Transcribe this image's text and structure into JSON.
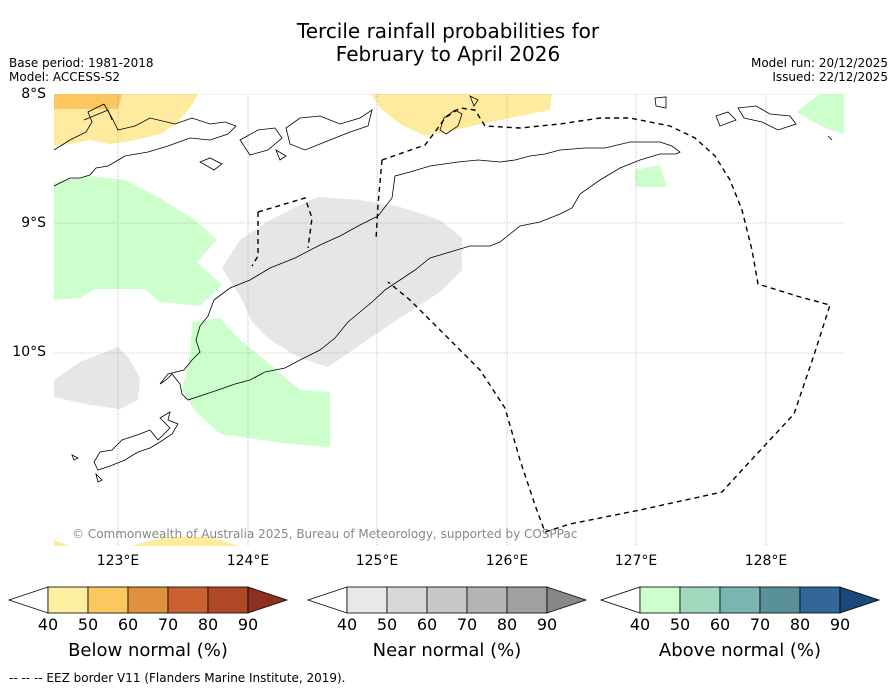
{
  "title_line1": "Tercile rainfall probabilities for",
  "title_line2": "February to April 2026",
  "meta_left": [
    "Base period: 1981-2018",
    "Model: ACCESS-S2"
  ],
  "meta_right": [
    "Model run: 20/12/2025",
    "Issued: 22/12/2025"
  ],
  "lat_labels": [
    "8°S",
    "9°S",
    "10°S"
  ],
  "lon_labels": [
    "123°E",
    "124°E",
    "125°E",
    "126°E",
    "127°E",
    "128°E"
  ],
  "copyright": "© Commonwealth of Australia 2025, Bureau of Meteorology, supported by COSPPac",
  "footer": "-- -- -- EEZ border V11 (Flanders Marine Institute, 2019).",
  "colorbars": [
    {
      "title": "Below normal (%)",
      "ticks": [
        "40",
        "50",
        "60",
        "70",
        "80",
        "90"
      ],
      "colors": [
        "#fff0a0",
        "#fdc75f",
        "#e0903e",
        "#cc6030",
        "#b04828",
        "#8c3020"
      ]
    },
    {
      "title": "Near normal (%)",
      "ticks": [
        "40",
        "50",
        "60",
        "70",
        "80",
        "90"
      ],
      "colors": [
        "#e8e8e8",
        "#d8d8d8",
        "#c8c8c8",
        "#b4b4b4",
        "#a0a0a0",
        "#888888"
      ]
    },
    {
      "title": "Above normal (%)",
      "ticks": [
        "40",
        "50",
        "60",
        "70",
        "80",
        "90"
      ],
      "colors": [
        "#ccffcc",
        "#a0d8be",
        "#7ab5b0",
        "#5a9098",
        "#336699",
        "#1a4a7a"
      ]
    }
  ],
  "colors": {
    "below": "#ffeb9e",
    "below_dark": "#fdc660",
    "near": "#e6e6e6",
    "above": "#ccffcc"
  }
}
